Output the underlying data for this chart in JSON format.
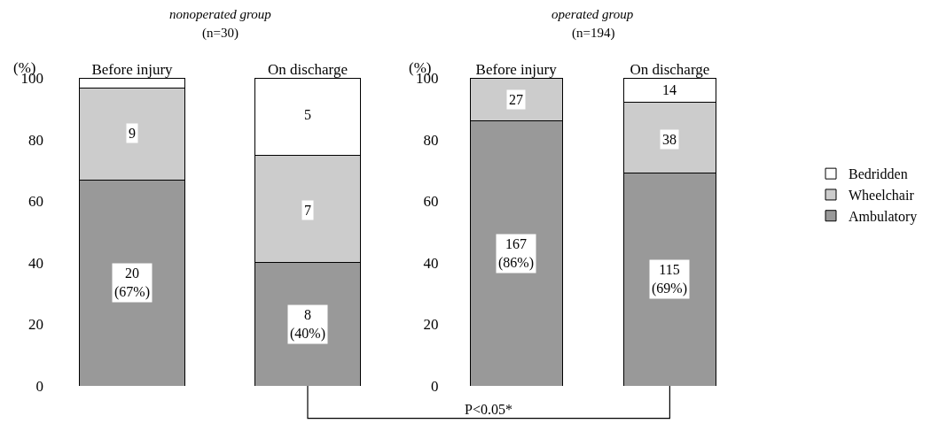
{
  "chart_data": [
    {
      "type": "bar",
      "title": "nonoperated group",
      "subtitle": "(n=30)",
      "ylabel": "(%)",
      "categories": [
        "Before injury",
        "On discharge"
      ],
      "stacked": true,
      "ylim": [
        0,
        100
      ],
      "yticks": [
        0,
        20,
        40,
        60,
        80,
        100
      ],
      "series": [
        {
          "color": "#999999",
          "values": [
            66.7,
            40
          ]
        },
        {
          "color": "#cccccc",
          "values": [
            30,
            35
          ]
        },
        {
          "color": "#ffffff",
          "values": [
            3.3,
            25
          ]
        }
      ],
      "annotations": [
        "20\n(67%)",
        "8\n(40%)",
        {
          "text": "9",
          "x": "Before injury",
          "y": 82
        },
        {
          "text": "7",
          "x": "On discharge",
          "y": 57
        },
        {
          "text": "5",
          "x": "On discharge",
          "y": 88
        }
      ]
    },
    {
      "type": "bar",
      "title": "operated group",
      "subtitle": "(n=194)",
      "ylabel": "(%)",
      "categories": [
        "Before injury",
        "On discharge"
      ],
      "stacked": true,
      "ylim": [
        0,
        100
      ],
      "yticks": [
        0,
        20,
        40,
        60,
        80,
        100
      ],
      "legend": "right",
      "series": [
        {
          "name": "Ambulatory",
          "color": "#999999",
          "values": [
            86,
            69
          ]
        },
        {
          "name": "Wheelchair",
          "color": "#cccccc",
          "values": [
            14,
            23
          ]
        },
        {
          "name": "Bedridden",
          "color": "#ffffff",
          "values": [
            null,
            8
          ]
        }
      ],
      "annotations": [
        "167\n(86%)",
        "115\n(69%)",
        "P<0.05*",
        {
          "text": "27",
          "x": "Before injury",
          "y": 93
        },
        {
          "text": "38",
          "x": "On discharge",
          "y": 80
        },
        {
          "text": "14",
          "x": "On discharge",
          "y": 96
        }
      ]
    }
  ]
}
